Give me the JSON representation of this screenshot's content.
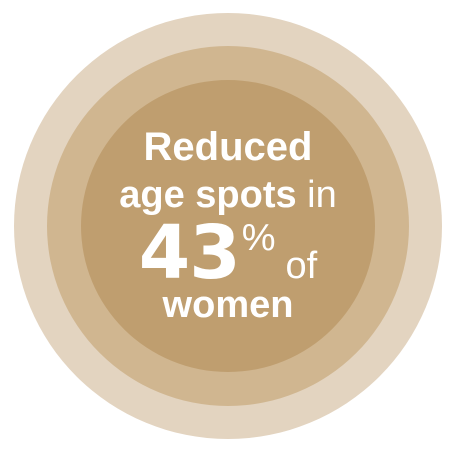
{
  "colors": {
    "outer_ring": "#e3d4c0",
    "middle_ring": "#d0b690",
    "inner_circle": "#bf9e6f",
    "text": "#ffffff"
  },
  "badge": {
    "line1": "Reduced",
    "line2_bold": "age spots",
    "line2_normal": " in",
    "value": "43",
    "unit": "%",
    "of_word": "of",
    "line4": "women"
  }
}
